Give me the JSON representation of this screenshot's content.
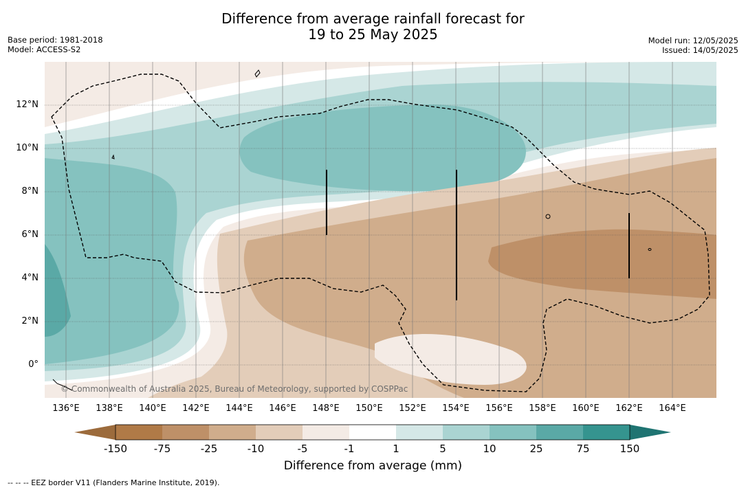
{
  "header": {
    "title_line1": "Difference from average rainfall forecast for",
    "title_line2": "19 to 25 May 2025",
    "base_period": "Base period: 1981-2018",
    "model": "Model: ACCESS-S2",
    "model_run": "Model run: 12/05/2025",
    "issued": "Issued: 14/05/2025"
  },
  "map": {
    "lon_range": [
      135,
      166
    ],
    "lat_range": [
      -1.5,
      14
    ],
    "x_ticks": [
      "136°E",
      "138°E",
      "140°E",
      "142°E",
      "144°E",
      "146°E",
      "148°E",
      "150°E",
      "152°E",
      "154°E",
      "156°E",
      "158°E",
      "160°E",
      "162°E",
      "164°E"
    ],
    "y_ticks": [
      "12°N",
      "10°N",
      "8°N",
      "6°N",
      "4°N",
      "2°N",
      "0°"
    ],
    "copyright": "© Commonwealth of Australia 2025, Bureau of Meteorology, supported by COSPPac"
  },
  "colorbar": {
    "tick_labels": [
      "-150",
      "-75",
      "-25",
      "-10",
      "-5",
      "-1",
      "1",
      "5",
      "10",
      "25",
      "75",
      "150"
    ],
    "colors": [
      "#9c6b3c",
      "#b07a47",
      "#be9068",
      "#d0ad8c",
      "#e3cdb9",
      "#f4ebe5",
      "#ffffff",
      "#d5e8e7",
      "#aad4d2",
      "#85c2bf",
      "#5aa9a6",
      "#35948f",
      "#1f7472"
    ],
    "title": "Difference from average (mm)"
  },
  "legend": {
    "eez_text": "--  --  -- EEZ border V11 (Flanders Marine Institute, 2019)."
  }
}
